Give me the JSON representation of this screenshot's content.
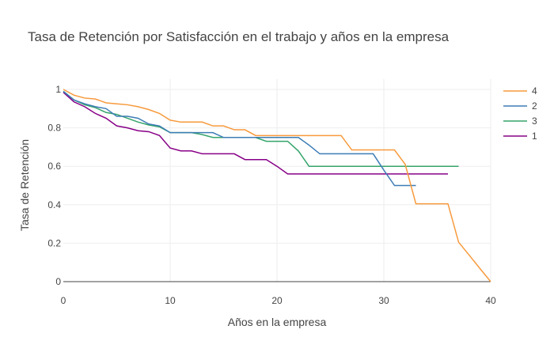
{
  "chart_data": {
    "type": "line",
    "title": "Tasa de Retención por Satisfacción en el trabajo y años en la empresa",
    "xlabel": "Años en la empresa",
    "ylabel": "Tasa de Retención",
    "xlim": [
      0,
      40
    ],
    "ylim": [
      0,
      1.05
    ],
    "x_ticks": [
      0,
      10,
      20,
      30,
      40
    ],
    "y_ticks": [
      0,
      0.2,
      0.4,
      0.6,
      0.8,
      1
    ],
    "grid": true,
    "legend_placement": "top-right",
    "series": [
      {
        "name": "4",
        "color": "#f79a3c",
        "points": [
          [
            0,
            1.0
          ],
          [
            1,
            0.97
          ],
          [
            2,
            0.955
          ],
          [
            3,
            0.95
          ],
          [
            4,
            0.93
          ],
          [
            5,
            0.925
          ],
          [
            6,
            0.92
          ],
          [
            7,
            0.91
          ],
          [
            8,
            0.895
          ],
          [
            9,
            0.875
          ],
          [
            10,
            0.84
          ],
          [
            11,
            0.83
          ],
          [
            12,
            0.83
          ],
          [
            13,
            0.83
          ],
          [
            14,
            0.81
          ],
          [
            15,
            0.81
          ],
          [
            16,
            0.79
          ],
          [
            17,
            0.79
          ],
          [
            18,
            0.76
          ],
          [
            19,
            0.76
          ],
          [
            20,
            0.76
          ],
          [
            21,
            0.76
          ],
          [
            22,
            0.76
          ],
          [
            23,
            0.76
          ],
          [
            24,
            0.76
          ],
          [
            25,
            0.76
          ],
          [
            26,
            0.76
          ],
          [
            27,
            0.685
          ],
          [
            28,
            0.685
          ],
          [
            29,
            0.685
          ],
          [
            30,
            0.685
          ],
          [
            31,
            0.685
          ],
          [
            32,
            0.61
          ],
          [
            33,
            0.405
          ],
          [
            34,
            0.405
          ],
          [
            35,
            0.405
          ],
          [
            36,
            0.405
          ],
          [
            37,
            0.205
          ],
          [
            38,
            0.137
          ],
          [
            39,
            0.068
          ],
          [
            40,
            0.0
          ]
        ]
      },
      {
        "name": "2",
        "color": "#3d7db5",
        "points": [
          [
            0,
            0.99
          ],
          [
            1,
            0.945
          ],
          [
            2,
            0.925
          ],
          [
            3,
            0.91
          ],
          [
            4,
            0.9
          ],
          [
            5,
            0.86
          ],
          [
            6,
            0.86
          ],
          [
            7,
            0.85
          ],
          [
            8,
            0.82
          ],
          [
            9,
            0.81
          ],
          [
            10,
            0.775
          ],
          [
            11,
            0.775
          ],
          [
            12,
            0.775
          ],
          [
            13,
            0.775
          ],
          [
            14,
            0.775
          ],
          [
            15,
            0.75
          ],
          [
            16,
            0.75
          ],
          [
            17,
            0.75
          ],
          [
            18,
            0.75
          ],
          [
            19,
            0.75
          ],
          [
            20,
            0.75
          ],
          [
            21,
            0.75
          ],
          [
            22,
            0.75
          ],
          [
            23,
            0.71
          ],
          [
            24,
            0.665
          ],
          [
            25,
            0.665
          ],
          [
            26,
            0.665
          ],
          [
            27,
            0.665
          ],
          [
            28,
            0.665
          ],
          [
            29,
            0.665
          ],
          [
            30,
            0.58
          ],
          [
            31,
            0.5
          ],
          [
            32,
            0.5
          ],
          [
            33,
            0.5
          ]
        ]
      },
      {
        "name": "3",
        "color": "#35a46a",
        "points": [
          [
            0,
            0.99
          ],
          [
            1,
            0.945
          ],
          [
            2,
            0.92
          ],
          [
            3,
            0.905
          ],
          [
            4,
            0.88
          ],
          [
            5,
            0.87
          ],
          [
            6,
            0.85
          ],
          [
            7,
            0.83
          ],
          [
            8,
            0.815
          ],
          [
            9,
            0.805
          ],
          [
            10,
            0.775
          ],
          [
            11,
            0.775
          ],
          [
            12,
            0.775
          ],
          [
            13,
            0.765
          ],
          [
            14,
            0.75
          ],
          [
            15,
            0.75
          ],
          [
            16,
            0.75
          ],
          [
            17,
            0.75
          ],
          [
            18,
            0.75
          ],
          [
            19,
            0.73
          ],
          [
            20,
            0.73
          ],
          [
            21,
            0.73
          ],
          [
            22,
            0.68
          ],
          [
            23,
            0.6
          ],
          [
            24,
            0.6
          ],
          [
            25,
            0.6
          ],
          [
            26,
            0.6
          ],
          [
            27,
            0.6
          ],
          [
            28,
            0.6
          ],
          [
            29,
            0.6
          ],
          [
            30,
            0.6
          ],
          [
            31,
            0.6
          ],
          [
            32,
            0.6
          ],
          [
            33,
            0.6
          ],
          [
            34,
            0.6
          ],
          [
            35,
            0.6
          ],
          [
            36,
            0.6
          ],
          [
            37,
            0.6
          ]
        ]
      },
      {
        "name": "1",
        "color": "#870087",
        "points": [
          [
            0,
            0.985
          ],
          [
            1,
            0.935
          ],
          [
            2,
            0.91
          ],
          [
            3,
            0.875
          ],
          [
            4,
            0.85
          ],
          [
            5,
            0.81
          ],
          [
            6,
            0.8
          ],
          [
            7,
            0.785
          ],
          [
            8,
            0.78
          ],
          [
            9,
            0.76
          ],
          [
            10,
            0.695
          ],
          [
            11,
            0.68
          ],
          [
            12,
            0.68
          ],
          [
            13,
            0.665
          ],
          [
            14,
            0.665
          ],
          [
            15,
            0.665
          ],
          [
            16,
            0.665
          ],
          [
            17,
            0.635
          ],
          [
            18,
            0.635
          ],
          [
            19,
            0.635
          ],
          [
            20,
            0.6
          ],
          [
            21,
            0.56
          ],
          [
            22,
            0.56
          ],
          [
            23,
            0.56
          ],
          [
            24,
            0.56
          ],
          [
            25,
            0.56
          ],
          [
            26,
            0.56
          ],
          [
            27,
            0.56
          ],
          [
            28,
            0.56
          ],
          [
            29,
            0.56
          ],
          [
            30,
            0.56
          ],
          [
            31,
            0.56
          ],
          [
            32,
            0.56
          ],
          [
            33,
            0.56
          ],
          [
            34,
            0.56
          ],
          [
            35,
            0.56
          ],
          [
            36,
            0.56
          ]
        ]
      }
    ]
  }
}
